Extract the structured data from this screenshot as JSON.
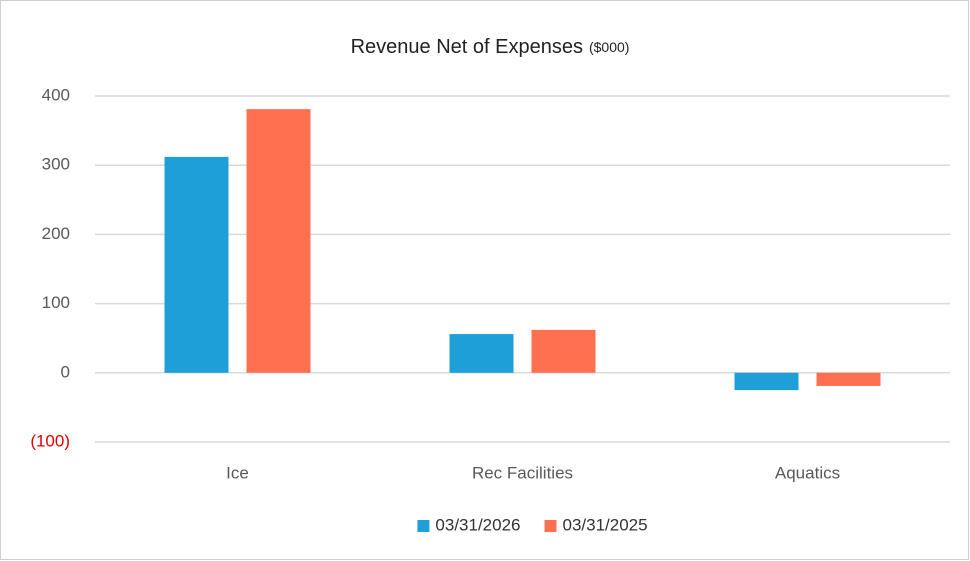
{
  "chart_data": {
    "type": "bar",
    "title": "Revenue Net of Expenses",
    "title_unit": "($000)",
    "categories": [
      "Ice",
      "Rec Facilities",
      "Aquatics"
    ],
    "series": [
      {
        "name": "03/31/2026",
        "color": "#1f9fd8",
        "values": [
          312,
          56,
          -25
        ]
      },
      {
        "name": "03/31/2025",
        "color": "#ff7050",
        "values": [
          381,
          62,
          -19
        ]
      }
    ],
    "ylim": [
      -100,
      400
    ],
    "yticks": [
      {
        "value": -100,
        "label": "(100)"
      },
      0,
      100,
      200,
      300,
      400
    ],
    "negative_tick_color": "#e00000",
    "grid": true,
    "legend": "bottom"
  }
}
